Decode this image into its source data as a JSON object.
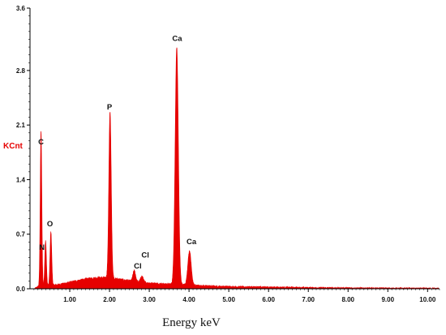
{
  "chart_data": {
    "type": "area",
    "title": "",
    "xlabel": "Energy keV",
    "ylabel": "KCnt",
    "xlim": [
      0.0,
      10.3
    ],
    "ylim": [
      0.0,
      3.6
    ],
    "x_ticks": [
      {
        "value": 1.0,
        "label": "1.00"
      },
      {
        "value": 2.0,
        "label": "2.00"
      },
      {
        "value": 3.0,
        "label": "3.00"
      },
      {
        "value": 4.0,
        "label": "4.00"
      },
      {
        "value": 5.0,
        "label": "5.00"
      },
      {
        "value": 6.0,
        "label": "6.00"
      },
      {
        "value": 7.0,
        "label": "7.00"
      },
      {
        "value": 8.0,
        "label": "8.00"
      },
      {
        "value": 9.0,
        "label": "9.00"
      },
      {
        "value": 10.0,
        "label": "10.00"
      }
    ],
    "y_ticks": [
      {
        "value": 0.0,
        "label": "0.0"
      },
      {
        "value": 0.7,
        "label": "0.7"
      },
      {
        "value": 1.4,
        "label": "1.4"
      },
      {
        "value": 2.1,
        "label": "2.1"
      },
      {
        "value": 2.8,
        "label": "2.8"
      },
      {
        "value": 3.6,
        "label": "3.6"
      }
    ],
    "fill_color": "#e60000",
    "peaks": [
      {
        "element": "C",
        "energy": 0.277,
        "height": 2.0
      },
      {
        "element": "N",
        "energy": 0.392,
        "height": 0.58
      },
      {
        "element": "O",
        "energy": 0.525,
        "height": 0.69
      },
      {
        "element": "P",
        "energy": 2.013,
        "height": 2.14
      },
      {
        "element": "Cl",
        "energy": 2.622,
        "height": 0.14
      },
      {
        "element": "Cl",
        "energy": 2.815,
        "height": 0.08
      },
      {
        "element": "Ca",
        "energy": 3.691,
        "height": 3.05
      },
      {
        "element": "Ca",
        "energy": 4.012,
        "height": 0.44
      }
    ],
    "peak_labels": [
      {
        "text": "C",
        "energy": 0.277,
        "y": 1.85
      },
      {
        "text": "N",
        "energy": 0.3,
        "y": 0.5
      },
      {
        "text": "O",
        "energy": 0.5,
        "y": 0.8
      },
      {
        "text": "P",
        "energy": 2.0,
        "y": 2.3
      },
      {
        "text": "Cl",
        "energy": 2.71,
        "y": 0.26
      },
      {
        "text": "Cl",
        "energy": 2.9,
        "y": 0.4
      },
      {
        "text": "Ca",
        "energy": 3.7,
        "y": 3.18
      },
      {
        "text": "Ca",
        "energy": 4.06,
        "y": 0.57
      }
    ]
  }
}
